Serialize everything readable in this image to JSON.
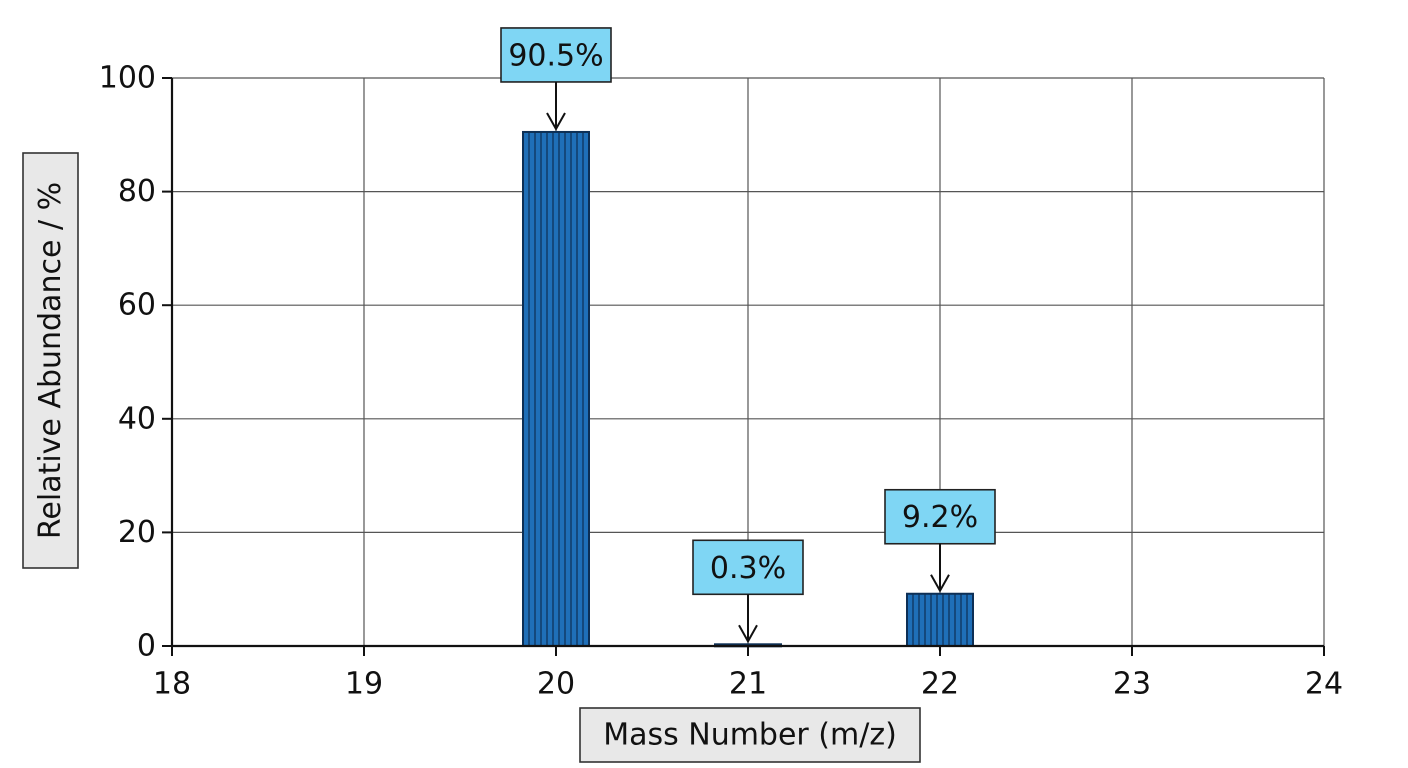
{
  "chart_data": {
    "type": "bar",
    "x_tick_labels": [
      "18",
      "19",
      "20",
      "21",
      "22",
      "23",
      "24"
    ],
    "y_tick_labels": [
      "0",
      "20",
      "40",
      "60",
      "80",
      "100"
    ],
    "xlabel": "Mass Number (m/z)",
    "ylabel": "Relative Abundance / %",
    "xlim": [
      18,
      24
    ],
    "ylim": [
      0,
      100
    ],
    "grid": true,
    "bar_color": "#1f6fb8",
    "bar_stripe_color": "#0d2f55",
    "callout_color": "#7fd6f4",
    "title_box_color": "#e8e8e8",
    "bars": [
      {
        "x": 20,
        "value": 90.5,
        "label": "90.5%"
      },
      {
        "x": 21,
        "value": 0.3,
        "label": "0.3%"
      },
      {
        "x": 22,
        "value": 9.2,
        "label": "9.2%"
      }
    ]
  }
}
